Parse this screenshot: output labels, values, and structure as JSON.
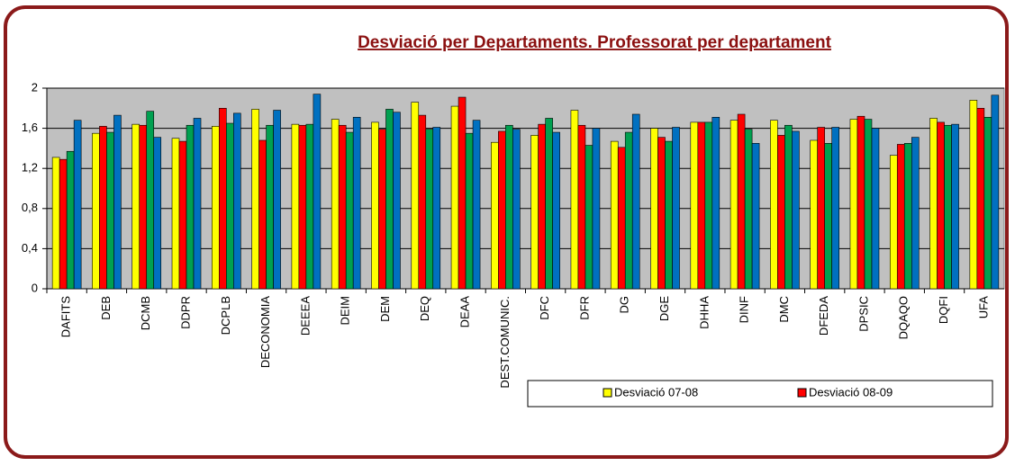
{
  "chart_data": {
    "type": "bar",
    "title": "Desviació per Departaments. Professorat per departament",
    "categories": [
      "DAFITS",
      "DEB",
      "DCMB",
      "DDPR",
      "DCPLB",
      "DECONOMIA",
      "DEEEA",
      "DEIM",
      "DEM",
      "DEQ",
      "DEAA",
      "DEST.COMUNIC.",
      "DFC",
      "DFR",
      "DG",
      "DGE",
      "DHHA",
      "DINF",
      "DMC",
      "DFEDA",
      "DPSIC",
      "DQAQO",
      "DQFI",
      "UFA"
    ],
    "series": [
      {
        "name": "Desviació 07-08",
        "color": "#ffff00",
        "values": [
          1.31,
          1.55,
          1.64,
          1.5,
          1.62,
          1.79,
          1.64,
          1.69,
          1.66,
          1.86,
          1.82,
          1.46,
          1.53,
          1.78,
          1.47,
          1.6,
          1.66,
          1.68,
          1.68,
          1.48,
          1.69,
          1.33,
          1.7,
          1.88
        ]
      },
      {
        "name": "Desviació 08-09",
        "color": "#ff0000",
        "values": [
          1.29,
          1.62,
          1.63,
          1.47,
          1.8,
          1.48,
          1.63,
          1.63,
          1.59,
          1.73,
          1.91,
          1.57,
          1.64,
          1.63,
          1.41,
          1.51,
          1.66,
          1.74,
          1.53,
          1.61,
          1.72,
          1.44,
          1.66,
          1.8
        ]
      },
      {
        "color": "#00a050",
        "values": [
          1.37,
          1.56,
          1.77,
          1.63,
          1.65,
          1.63,
          1.64,
          1.56,
          1.79,
          1.59,
          1.55,
          1.63,
          1.7,
          1.43,
          1.56,
          1.47,
          1.66,
          1.59,
          1.63,
          1.45,
          1.69,
          1.45,
          1.63,
          1.71
        ]
      },
      {
        "color": "#0070c0",
        "values": [
          1.68,
          1.73,
          1.51,
          1.7,
          1.75,
          1.78,
          1.94,
          1.71,
          1.76,
          1.61,
          1.68,
          1.59,
          1.56,
          1.6,
          1.74,
          1.61,
          1.71,
          1.45,
          1.57,
          1.61,
          1.6,
          1.51,
          1.64,
          1.93
        ]
      }
    ],
    "ylim": [
      0,
      2
    ],
    "yticks": [
      0,
      {
        "value": 0.4,
        "label": "0,4"
      },
      {
        "value": 0.8,
        "label": "0,8"
      },
      {
        "value": 1.2,
        "label": "1,2"
      },
      {
        "value": 1.6,
        "label": "1,6"
      },
      2
    ],
    "grid": true
  }
}
